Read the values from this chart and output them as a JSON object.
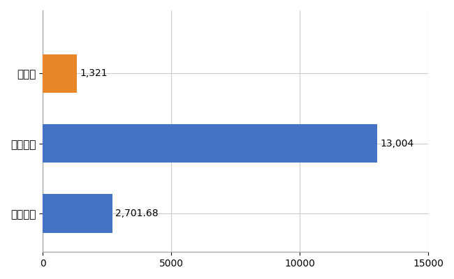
{
  "categories": [
    "石川県",
    "全国最大",
    "全国平均"
  ],
  "values": [
    1321,
    13004,
    2701.68
  ],
  "bar_colors": [
    "#e8872a",
    "#4472c4",
    "#4472c4"
  ],
  "value_labels": [
    "1,321",
    "13,004",
    "2,701.68"
  ],
  "xlim": [
    0,
    15000
  ],
  "xticks": [
    0,
    5000,
    10000,
    15000
  ],
  "background_color": "#ffffff",
  "grid_color": "#cccccc",
  "label_fontsize": 11,
  "tick_fontsize": 10,
  "bar_height": 0.55
}
